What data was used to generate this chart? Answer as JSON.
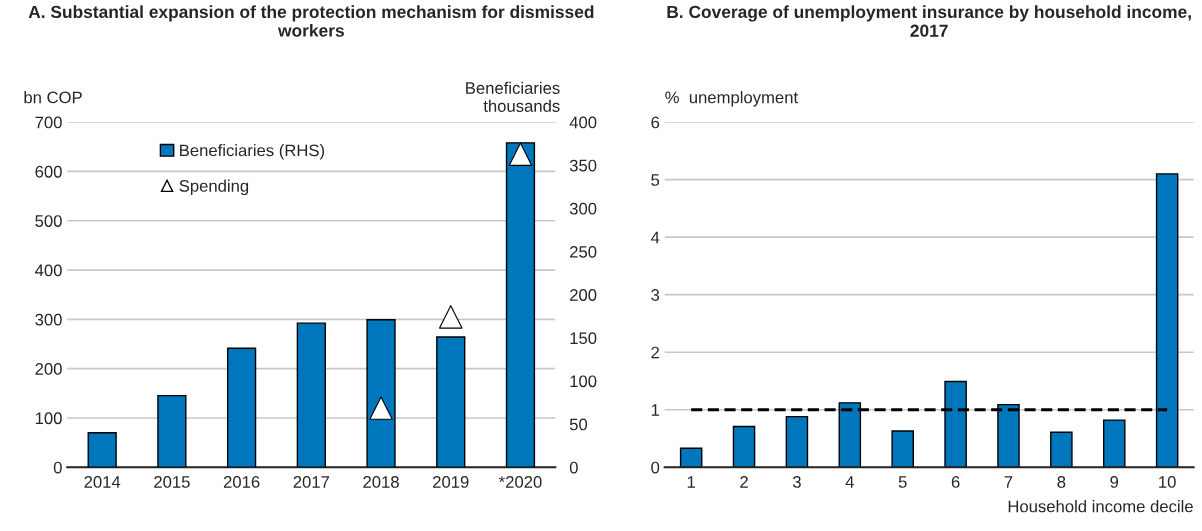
{
  "chart_data": [
    {
      "type": "bar",
      "title": "A. Substantial expansion of the protection mechanism for dismissed workers",
      "ylabel": "bn COP",
      "y2label": "Beneficiaries\nthousands",
      "categories": [
        "2014",
        "2015",
        "2016",
        "2017",
        "2018",
        "2019",
        "*2020"
      ],
      "series": [
        {
          "name": "Beneficiaries (RHS)",
          "type": "bar",
          "axis": "y2",
          "color": "#0077bd",
          "values": [
            40,
            83,
            138,
            167,
            171,
            151,
            376
          ]
        },
        {
          "name": "Spending",
          "type": "scatter",
          "marker": "triangle",
          "color": "#ffffff",
          "values": [
            null,
            null,
            null,
            null,
            120,
            305,
            635
          ]
        }
      ],
      "ylim": [
        0,
        700
      ],
      "yticks": [
        0,
        100,
        200,
        300,
        400,
        500,
        600,
        700
      ],
      "y2lim": [
        0,
        400
      ],
      "y2ticks": [
        0,
        50,
        100,
        150,
        200,
        250,
        300,
        350,
        400
      ],
      "grid": "y",
      "legend": "top left"
    },
    {
      "type": "bar",
      "title": "B. Coverage of unemployment insurance by household income, 2017",
      "ylabel": "%  unemployment",
      "xlabel": "Household income decile",
      "categories": [
        "1",
        "2",
        "3",
        "4",
        "5",
        "6",
        "7",
        "8",
        "9",
        "10"
      ],
      "series": [
        {
          "color": "#0077bd",
          "values": [
            0.33,
            0.71,
            0.88,
            1.12,
            0.63,
            1.49,
            1.09,
            0.61,
            0.82,
            5.1
          ]
        }
      ],
      "ylim": [
        0,
        6
      ],
      "yticks": [
        0,
        1,
        2,
        3,
        4,
        5,
        6
      ],
      "grid": "y",
      "ref_lines": [
        {
          "axis": "y",
          "value": 1,
          "color": "#000000",
          "line_style": "dashed"
        }
      ]
    }
  ]
}
